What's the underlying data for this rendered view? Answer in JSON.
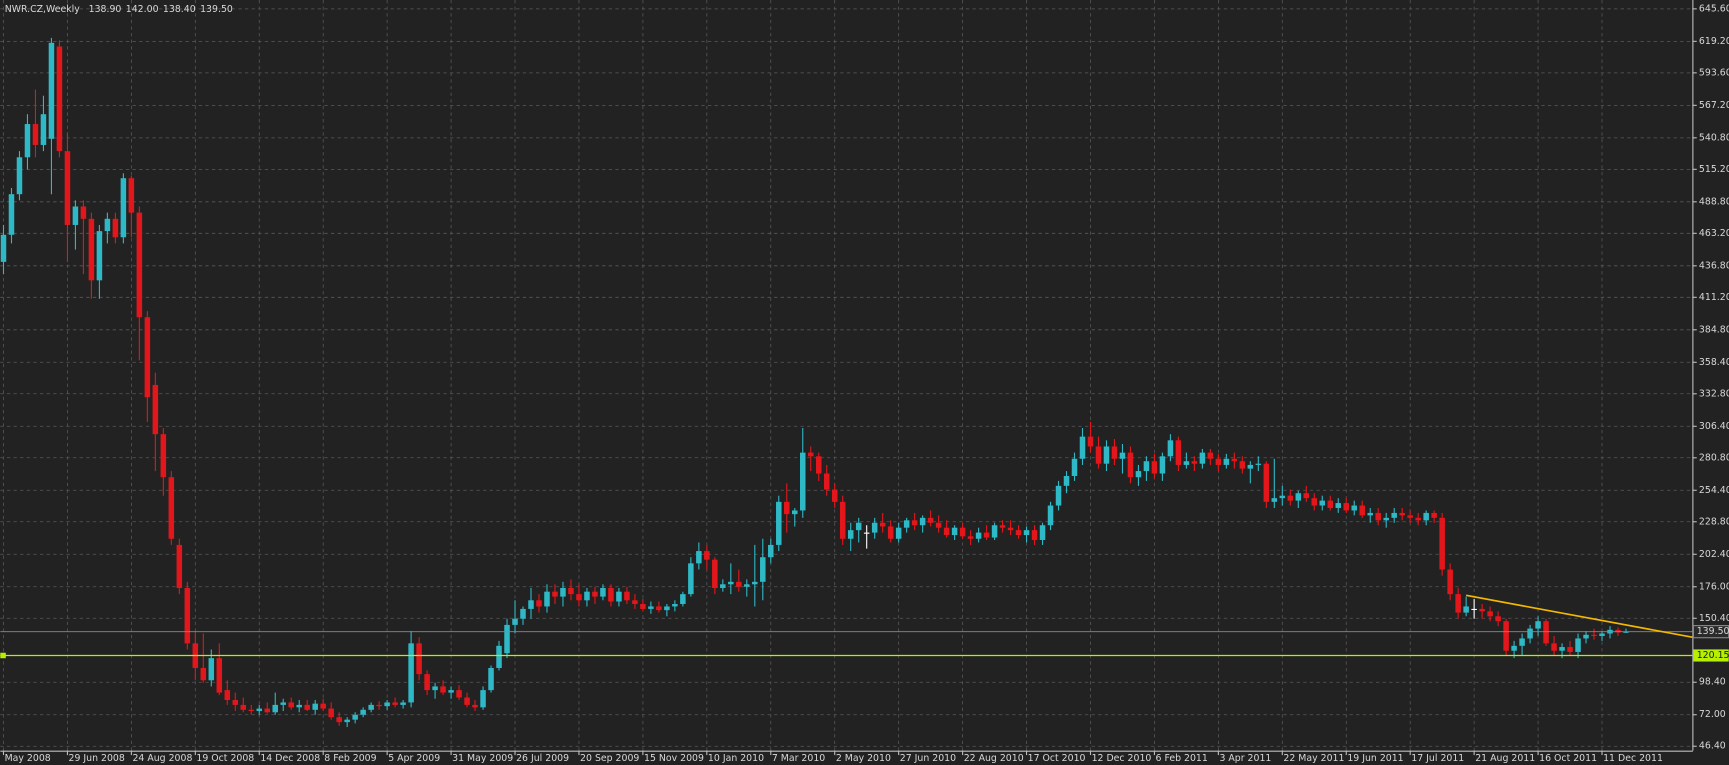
{
  "chart_data": {
    "type": "candlestick",
    "title": "NWR.CZ,Weekly",
    "title_values": [
      "138.90",
      "142.00",
      "138.40",
      "139.50"
    ],
    "up_color": "#2fb8c6",
    "down_color": "#e3171b",
    "doji_color": "#ffffff",
    "background": "#222222",
    "grid": true,
    "categories": [
      "May 2008",
      null,
      null,
      null,
      null,
      null,
      null,
      null,
      "29 Jun 2008",
      null,
      null,
      null,
      null,
      null,
      null,
      null,
      "24 Aug 2008",
      null,
      null,
      null,
      null,
      null,
      null,
      null,
      "19 Oct 2008",
      null,
      null,
      null,
      null,
      null,
      null,
      null,
      "14 Dec 2008",
      null,
      null,
      null,
      null,
      null,
      null,
      null,
      "8 Feb 2009",
      null,
      null,
      null,
      null,
      null,
      null,
      null,
      "5 Apr 2009",
      null,
      null,
      null,
      null,
      null,
      null,
      null,
      "31 May 2009",
      null,
      null,
      null,
      null,
      null,
      null,
      null,
      "26 Jul 2009",
      null,
      null,
      null,
      null,
      null,
      null,
      null,
      "20 Sep 2009",
      null,
      null,
      null,
      null,
      null,
      null,
      null,
      "15 Nov 2009",
      null,
      null,
      null,
      null,
      null,
      null,
      null,
      "10 Jan 2010",
      null,
      null,
      null,
      null,
      null,
      null,
      null,
      "7 Mar 2010",
      null,
      null,
      null,
      null,
      null,
      null,
      null,
      "2 May 2010",
      null,
      null,
      null,
      null,
      null,
      null,
      null,
      "27 Jun 2010",
      null,
      null,
      null,
      null,
      null,
      null,
      null,
      "22 Aug 2010",
      null,
      null,
      null,
      null,
      null,
      null,
      null,
      "17 Oct 2010",
      null,
      null,
      null,
      null,
      null,
      null,
      null,
      "12 Dec 2010",
      null,
      null,
      null,
      null,
      null,
      null,
      null,
      "6 Feb 2011",
      null,
      null,
      null,
      null,
      null,
      null,
      null,
      "3 Apr 2011",
      null,
      null,
      null,
      null,
      null,
      null,
      null,
      "22 May 2011",
      null,
      null,
      null,
      null,
      null,
      null,
      null,
      "19 Jun 2011",
      null,
      null,
      null,
      null,
      null,
      null,
      null,
      "17 Jul 2011",
      null,
      null,
      null,
      null,
      null,
      null,
      null,
      "21 Aug 2011",
      null,
      null,
      null,
      null,
      null,
      null,
      null,
      "16 Oct 2011",
      null,
      null,
      null,
      null,
      null,
      null,
      null,
      "11 Dec 2011",
      null,
      null,
      null
    ],
    "ohlc": [
      [
        440,
        470,
        430,
        462
      ],
      [
        462,
        500,
        455,
        495
      ],
      [
        495,
        530,
        490,
        525
      ],
      [
        525,
        560,
        515,
        552
      ],
      [
        552,
        580,
        525,
        535
      ],
      [
        535,
        575,
        530,
        560
      ],
      [
        540,
        622,
        495,
        618
      ],
      [
        615,
        620,
        525,
        530
      ],
      [
        530,
        545,
        440,
        470
      ],
      [
        470,
        490,
        450,
        485
      ],
      [
        485,
        490,
        430,
        475
      ],
      [
        475,
        480,
        410,
        425
      ],
      [
        425,
        470,
        410,
        465
      ],
      [
        465,
        480,
        455,
        475
      ],
      [
        475,
        480,
        455,
        460
      ],
      [
        460,
        512,
        455,
        508
      ],
      [
        508,
        510,
        460,
        480
      ],
      [
        480,
        485,
        360,
        395
      ],
      [
        395,
        400,
        310,
        330
      ],
      [
        340,
        350,
        270,
        300
      ],
      [
        300,
        305,
        250,
        265
      ],
      [
        265,
        270,
        210,
        215
      ],
      [
        210,
        215,
        170,
        175
      ],
      [
        175,
        180,
        125,
        130
      ],
      [
        130,
        140,
        100,
        110
      ],
      [
        110,
        138,
        98,
        100
      ],
      [
        100,
        125,
        95,
        118
      ],
      [
        118,
        130,
        88,
        90
      ],
      [
        92,
        100,
        80,
        84
      ],
      [
        84,
        90,
        75,
        80
      ],
      [
        80,
        86,
        74,
        76
      ],
      [
        76,
        80,
        72,
        75
      ],
      [
        75,
        80,
        72,
        77
      ],
      [
        77,
        82,
        73,
        74
      ],
      [
        74,
        90,
        72,
        80
      ],
      [
        80,
        85,
        75,
        82
      ],
      [
        82,
        86,
        76,
        78
      ],
      [
        78,
        84,
        74,
        80
      ],
      [
        80,
        84,
        75,
        76
      ],
      [
        76,
        84,
        72,
        81
      ],
      [
        81,
        85,
        75,
        77
      ],
      [
        77,
        82,
        68,
        70
      ],
      [
        70,
        74,
        63,
        66
      ],
      [
        66,
        70,
        62,
        68
      ],
      [
        68,
        74,
        65,
        72
      ],
      [
        72,
        78,
        70,
        76
      ],
      [
        76,
        82,
        74,
        80
      ],
      [
        80,
        83,
        76,
        79
      ],
      [
        79,
        84,
        76,
        82
      ],
      [
        82,
        86,
        78,
        80
      ],
      [
        80,
        84,
        77,
        82
      ],
      [
        82,
        140,
        78,
        130
      ],
      [
        130,
        135,
        100,
        105
      ],
      [
        105,
        108,
        88,
        92
      ],
      [
        92,
        98,
        85,
        95
      ],
      [
        95,
        100,
        88,
        90
      ],
      [
        90,
        95,
        85,
        92
      ],
      [
        92,
        96,
        84,
        86
      ],
      [
        86,
        90,
        78,
        80
      ],
      [
        80,
        84,
        75,
        78
      ],
      [
        78,
        95,
        76,
        92
      ],
      [
        92,
        112,
        90,
        110
      ],
      [
        110,
        132,
        108,
        128
      ],
      [
        122,
        150,
        118,
        145
      ],
      [
        145,
        165,
        138,
        150
      ],
      [
        150,
        160,
        145,
        158
      ],
      [
        158,
        175,
        150,
        165
      ],
      [
        165,
        170,
        155,
        160
      ],
      [
        160,
        178,
        155,
        172
      ],
      [
        172,
        178,
        162,
        168
      ],
      [
        168,
        180,
        160,
        175
      ],
      [
        175,
        182,
        165,
        170
      ],
      [
        170,
        178,
        160,
        165
      ],
      [
        165,
        175,
        160,
        172
      ],
      [
        172,
        176,
        162,
        168
      ],
      [
        168,
        178,
        165,
        175
      ],
      [
        175,
        178,
        160,
        164
      ],
      [
        164,
        175,
        160,
        172
      ],
      [
        172,
        176,
        162,
        165
      ],
      [
        165,
        170,
        158,
        162
      ],
      [
        162,
        166,
        156,
        158
      ],
      [
        158,
        164,
        154,
        160
      ],
      [
        160,
        164,
        155,
        157
      ],
      [
        157,
        162,
        152,
        160
      ],
      [
        160,
        165,
        156,
        162
      ],
      [
        162,
        172,
        160,
        170
      ],
      [
        170,
        200,
        168,
        195
      ],
      [
        195,
        212,
        190,
        205
      ],
      [
        205,
        210,
        190,
        198
      ],
      [
        198,
        200,
        170,
        175
      ],
      [
        175,
        182,
        172,
        178
      ],
      [
        178,
        195,
        170,
        180
      ],
      [
        180,
        190,
        172,
        176
      ],
      [
        176,
        182,
        168,
        178
      ],
      [
        178,
        210,
        160,
        180
      ],
      [
        180,
        215,
        165,
        200
      ],
      [
        200,
        215,
        195,
        210
      ],
      [
        210,
        250,
        205,
        245
      ],
      [
        245,
        260,
        220,
        235
      ],
      [
        235,
        240,
        225,
        238
      ],
      [
        238,
        305,
        232,
        285
      ],
      [
        285,
        290,
        270,
        282
      ],
      [
        282,
        285,
        262,
        268
      ],
      [
        268,
        275,
        250,
        255
      ],
      [
        255,
        260,
        240,
        245
      ],
      [
        245,
        250,
        210,
        215
      ],
      [
        215,
        228,
        205,
        222
      ],
      [
        222,
        232,
        212,
        228
      ],
      [
        220,
        226,
        207,
        220
      ],
      [
        220,
        232,
        215,
        228
      ],
      [
        228,
        236,
        220,
        225
      ],
      [
        225,
        230,
        212,
        215
      ],
      [
        215,
        228,
        212,
        224
      ],
      [
        224,
        232,
        220,
        230
      ],
      [
        230,
        236,
        222,
        226
      ],
      [
        226,
        234,
        220,
        232
      ],
      [
        232,
        238,
        225,
        228
      ],
      [
        228,
        234,
        220,
        224
      ],
      [
        224,
        230,
        216,
        218
      ],
      [
        218,
        226,
        214,
        224
      ],
      [
        224,
        228,
        215,
        217
      ],
      [
        217,
        222,
        210,
        215
      ],
      [
        215,
        224,
        212,
        220
      ],
      [
        220,
        226,
        214,
        216
      ],
      [
        216,
        228,
        214,
        226
      ],
      [
        226,
        230,
        220,
        224
      ],
      [
        224,
        230,
        218,
        222
      ],
      [
        222,
        226,
        215,
        218
      ],
      [
        218,
        225,
        212,
        222
      ],
      [
        222,
        226,
        210,
        214
      ],
      [
        214,
        228,
        210,
        226
      ],
      [
        226,
        245,
        222,
        242
      ],
      [
        242,
        262,
        238,
        258
      ],
      [
        258,
        270,
        252,
        266
      ],
      [
        266,
        285,
        262,
        280
      ],
      [
        280,
        305,
        275,
        298
      ],
      [
        298,
        310,
        285,
        290
      ],
      [
        290,
        298,
        272,
        276
      ],
      [
        276,
        295,
        270,
        290
      ],
      [
        290,
        296,
        275,
        280
      ],
      [
        280,
        292,
        268,
        285
      ],
      [
        285,
        290,
        260,
        265
      ],
      [
        265,
        275,
        258,
        270
      ],
      [
        270,
        282,
        262,
        278
      ],
      [
        278,
        284,
        264,
        268
      ],
      [
        268,
        285,
        262,
        282
      ],
      [
        282,
        300,
        278,
        295
      ],
      [
        295,
        298,
        270,
        275
      ],
      [
        275,
        285,
        272,
        278
      ],
      [
        278,
        282,
        270,
        276
      ],
      [
        276,
        288,
        272,
        285
      ],
      [
        285,
        288,
        275,
        280
      ],
      [
        280,
        284,
        270,
        275
      ],
      [
        275,
        284,
        272,
        280
      ],
      [
        280,
        285,
        272,
        278
      ],
      [
        278,
        282,
        268,
        272
      ],
      [
        272,
        278,
        260,
        275
      ],
      [
        275,
        282,
        270,
        276
      ],
      [
        276,
        278,
        240,
        245
      ],
      [
        245,
        280,
        240,
        248
      ],
      [
        248,
        258,
        242,
        250
      ],
      [
        250,
        255,
        242,
        246
      ],
      [
        246,
        254,
        240,
        252
      ],
      [
        252,
        258,
        245,
        248
      ],
      [
        248,
        252,
        238,
        242
      ],
      [
        242,
        250,
        238,
        246
      ],
      [
        246,
        250,
        238,
        240
      ],
      [
        240,
        248,
        236,
        244
      ],
      [
        244,
        248,
        236,
        238
      ],
      [
        238,
        246,
        234,
        242
      ],
      [
        242,
        246,
        232,
        234
      ],
      [
        234,
        240,
        228,
        236
      ],
      [
        236,
        240,
        226,
        230
      ],
      [
        230,
        236,
        224,
        232
      ],
      [
        232,
        240,
        228,
        236
      ],
      [
        236,
        240,
        230,
        234
      ],
      [
        234,
        238,
        228,
        232
      ],
      [
        232,
        236,
        226,
        230
      ],
      [
        230,
        238,
        226,
        236
      ],
      [
        236,
        238,
        228,
        232
      ],
      [
        232,
        236,
        185,
        190
      ],
      [
        190,
        195,
        165,
        170
      ],
      [
        170,
        175,
        150,
        155
      ],
      [
        155,
        168,
        152,
        160
      ],
      [
        158,
        166,
        150,
        158
      ],
      [
        158,
        162,
        150,
        156
      ],
      [
        156,
        160,
        148,
        152
      ],
      [
        152,
        156,
        144,
        148
      ],
      [
        148,
        150,
        120,
        124
      ],
      [
        124,
        132,
        118,
        128
      ],
      [
        128,
        138,
        120,
        134
      ],
      [
        134,
        145,
        130,
        142
      ],
      [
        142,
        152,
        136,
        148
      ],
      [
        148,
        150,
        128,
        130
      ],
      [
        130,
        136,
        120,
        124
      ],
      [
        124,
        130,
        118,
        127
      ],
      [
        127,
        132,
        120,
        123
      ],
      [
        123,
        138,
        118,
        134
      ],
      [
        134,
        140,
        130,
        137
      ],
      [
        137,
        142,
        133,
        136
      ],
      [
        136,
        140,
        132,
        138
      ],
      [
        138,
        144,
        134,
        141
      ],
      [
        141,
        143,
        136,
        138.9
      ],
      [
        138.9,
        142,
        138.4,
        139.5
      ]
    ],
    "xlim": [
      -0.4,
      211.3
    ],
    "ylim": [
      42.8,
      652.8
    ],
    "yticks": [
      {
        "value": 645.6,
        "label": "645.60"
      },
      {
        "value": 619.2,
        "label": "619.20"
      },
      {
        "value": 593.6,
        "label": "593.60"
      },
      {
        "value": 567.2,
        "label": "567.20"
      },
      {
        "value": 540.8,
        "label": "540.80"
      },
      {
        "value": 515.2,
        "label": "515.20"
      },
      {
        "value": 488.8,
        "label": "488.80"
      },
      {
        "value": 463.2,
        "label": "463.20"
      },
      {
        "value": 436.8,
        "label": "436.80"
      },
      {
        "value": 411.2,
        "label": "411.20"
      },
      {
        "value": 384.8,
        "label": "384.80"
      },
      {
        "value": 358.4,
        "label": "358.40"
      },
      {
        "value": 332.8,
        "label": "332.80"
      },
      {
        "value": 306.4,
        "label": "306.40"
      },
      {
        "value": 280.8,
        "label": "280.80"
      },
      {
        "value": 254.4,
        "label": "254.40"
      },
      {
        "value": 228.8,
        "label": "228.80"
      },
      {
        "value": 202.4,
        "label": "202.40"
      },
      {
        "value": 176,
        "label": "176.00"
      },
      {
        "value": 150.4,
        "label": "150.40"
      },
      {
        "value": 98.4,
        "label": "98.40"
      },
      {
        "value": 72,
        "label": "72.00"
      },
      {
        "value": 46.4,
        "label": "46.40"
      }
    ],
    "price_line": {
      "value": 139.5,
      "label": "139.50",
      "color": "#8a8a8a"
    },
    "support_line": {
      "value": 120.15,
      "label": "120.15",
      "color": "#b6f000"
    },
    "trendline": {
      "x": [
        183,
        211.3
      ],
      "values": [
        169,
        135
      ],
      "color": "#f5b800"
    }
  }
}
